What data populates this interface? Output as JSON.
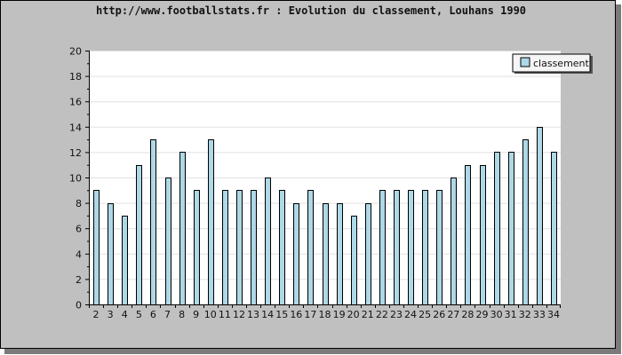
{
  "chart_data": {
    "type": "bar",
    "title": "http://www.footballstats.fr : Evolution du classement, Louhans 1990",
    "xlabel": "",
    "ylabel": "",
    "categories": [
      "2",
      "3",
      "4",
      "5",
      "6",
      "7",
      "8",
      "9",
      "10",
      "11",
      "12",
      "13",
      "14",
      "15",
      "16",
      "17",
      "18",
      "19",
      "20",
      "21",
      "22",
      "23",
      "24",
      "25",
      "26",
      "27",
      "28",
      "29",
      "30",
      "31",
      "32",
      "33",
      "34"
    ],
    "series": [
      {
        "name": "classement",
        "values": [
          9,
          8,
          7,
          11,
          13,
          10,
          12,
          9,
          13,
          9,
          9,
          9,
          10,
          9,
          8,
          9,
          8,
          8,
          7,
          8,
          9,
          9,
          9,
          9,
          9,
          10,
          11,
          11,
          12,
          12,
          13,
          14,
          12
        ]
      }
    ],
    "ylim": [
      0,
      20
    ],
    "yticks": [
      0,
      2,
      4,
      6,
      8,
      10,
      12,
      14,
      16,
      18,
      20
    ],
    "grid": true,
    "legend": "top-right",
    "colors": {
      "bar_fill": "#ADD8E6",
      "bar_stroke": "#000000",
      "frame_bg": "#C0C0C0",
      "plot_bg": "#FFFFFF",
      "grid": "#E0E0E0",
      "legend_bg": "#F5F5F5"
    }
  }
}
